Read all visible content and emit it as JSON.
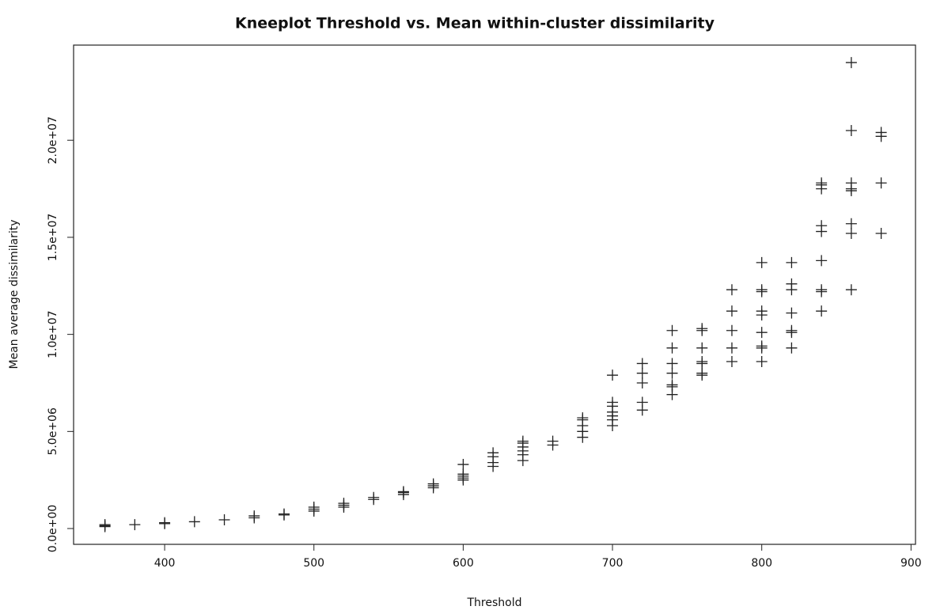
{
  "chart_data": {
    "type": "scatter",
    "title": "Kneeplot Threshold vs. Mean within-cluster dissimilarity",
    "xlabel": "Threshold",
    "ylabel": "Mean average dissimilarity",
    "color": "#222222",
    "xlim": [
      339,
      903
    ],
    "ylim": [
      -814000,
      24900000
    ],
    "xticks": [
      400,
      500,
      600,
      700,
      800,
      900
    ],
    "yticks": [
      {
        "value": 0,
        "label": "0.0e+00"
      },
      {
        "value": 5000000,
        "label": "5.0e+06"
      },
      {
        "value": 10000000,
        "label": "1.0e+07"
      },
      {
        "value": 15000000,
        "label": "1.5e+07"
      },
      {
        "value": 20000000,
        "label": "2.0e+07"
      }
    ],
    "x": [
      360,
      360,
      360,
      380,
      400,
      400,
      420,
      440,
      460,
      460,
      480,
      480,
      500,
      500,
      500,
      520,
      520,
      520,
      540,
      540,
      560,
      560,
      560,
      580,
      580,
      580,
      600,
      600,
      600,
      600,
      600,
      620,
      620,
      620,
      620,
      640,
      640,
      640,
      640,
      640,
      640,
      660,
      660,
      680,
      680,
      680,
      680,
      680,
      700,
      700,
      700,
      700,
      700,
      700,
      700,
      720,
      720,
      720,
      720,
      720,
      740,
      740,
      740,
      740,
      740,
      740,
      740,
      760,
      760,
      760,
      760,
      760,
      760,
      760,
      780,
      780,
      780,
      780,
      780,
      800,
      800,
      800,
      800,
      800,
      800,
      800,
      800,
      800,
      820,
      820,
      820,
      820,
      820,
      820,
      820,
      840,
      840,
      840,
      840,
      840,
      840,
      840,
      840,
      840,
      860,
      860,
      860,
      860,
      860,
      860,
      860,
      860,
      880,
      880,
      880,
      880
    ],
    "values": [
      100000,
      150000,
      200000,
      200000,
      250000,
      300000,
      350000,
      450000,
      550000,
      650000,
      700000,
      750000,
      900000,
      1000000,
      1100000,
      1100000,
      1200000,
      1300000,
      1500000,
      1600000,
      1750000,
      1850000,
      1900000,
      2100000,
      2200000,
      2300000,
      2500000,
      2600000,
      2700000,
      2800000,
      3300000,
      3200000,
      3400000,
      3700000,
      3900000,
      3500000,
      3800000,
      4000000,
      4200000,
      4400000,
      4500000,
      4300000,
      4500000,
      4700000,
      5000000,
      5300000,
      5600000,
      5700000,
      5300000,
      5600000,
      5800000,
      6000000,
      6300000,
      6500000,
      7900000,
      6100000,
      6500000,
      7500000,
      8000000,
      8500000,
      6900000,
      7300000,
      7400000,
      8000000,
      8500000,
      9300000,
      10200000,
      7900000,
      8000000,
      8500000,
      8600000,
      9300000,
      10200000,
      10300000,
      8600000,
      9300000,
      10200000,
      11200000,
      12300000,
      8600000,
      9300000,
      9400000,
      10100000,
      11000000,
      11200000,
      12200000,
      12300000,
      13700000,
      9300000,
      10100000,
      10200000,
      11100000,
      12300000,
      12600000,
      13700000,
      11200000,
      12200000,
      12300000,
      13800000,
      15300000,
      15600000,
      17500000,
      17700000,
      17800000,
      12300000,
      15200000,
      15700000,
      17400000,
      17500000,
      17800000,
      20500000,
      24000000,
      15200000,
      17800000,
      20200000,
      20400000
    ]
  }
}
